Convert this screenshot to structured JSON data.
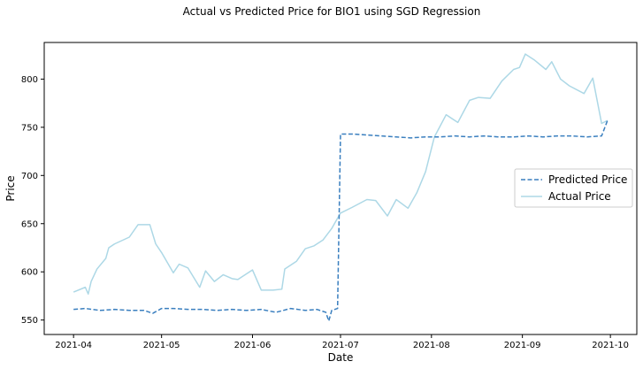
{
  "chart_data": {
    "type": "line",
    "title": "Actual vs Predicted Price for BIO1 using SGD Regression",
    "xlabel": "Date",
    "ylabel": "Price",
    "xlim": [
      "2021-03-22",
      "2021-10-10"
    ],
    "ylim": [
      535,
      838
    ],
    "x_ticks": [
      "2021-04",
      "2021-05",
      "2021-06",
      "2021-07",
      "2021-08",
      "2021-09",
      "2021-10"
    ],
    "y_ticks": [
      550,
      600,
      650,
      700,
      750,
      800
    ],
    "grid": false,
    "legend_position": "right",
    "series": [
      {
        "name": "Predicted Price",
        "color": "#3a7fbf",
        "style": "dashed",
        "x": [
          "2021-04-01",
          "2021-04-05",
          "2021-04-10",
          "2021-04-15",
          "2021-04-20",
          "2021-04-25",
          "2021-04-28",
          "2021-05-01",
          "2021-05-05",
          "2021-05-10",
          "2021-05-15",
          "2021-05-20",
          "2021-05-25",
          "2021-05-30",
          "2021-06-04",
          "2021-06-09",
          "2021-06-14",
          "2021-06-19",
          "2021-06-23",
          "2021-06-26",
          "2021-06-27",
          "2021-06-28",
          "2021-06-30",
          "2021-07-01",
          "2021-07-05",
          "2021-07-10",
          "2021-07-15",
          "2021-07-20",
          "2021-07-25",
          "2021-07-30",
          "2021-08-04",
          "2021-08-09",
          "2021-08-14",
          "2021-08-19",
          "2021-08-24",
          "2021-08-29",
          "2021-09-03",
          "2021-09-08",
          "2021-09-13",
          "2021-09-18",
          "2021-09-23",
          "2021-09-28",
          "2021-09-30"
        ],
        "values": [
          561,
          562,
          560,
          561,
          560,
          560,
          557,
          562,
          562,
          561,
          561,
          560,
          561,
          560,
          561,
          558,
          562,
          560,
          561,
          558,
          549,
          560,
          562,
          743,
          743,
          742,
          741,
          740,
          739,
          740,
          740,
          741,
          740,
          741,
          740,
          740,
          741,
          740,
          741,
          741,
          740,
          741,
          757
        ]
      },
      {
        "name": "Actual Price",
        "color": "#add8e6",
        "style": "solid",
        "x": [
          "2021-04-01",
          "2021-04-05",
          "2021-04-06",
          "2021-04-07",
          "2021-04-09",
          "2021-04-12",
          "2021-04-13",
          "2021-04-15",
          "2021-04-20",
          "2021-04-23",
          "2021-04-27",
          "2021-04-29",
          "2021-05-01",
          "2021-05-05",
          "2021-05-07",
          "2021-05-10",
          "2021-05-12",
          "2021-05-14",
          "2021-05-16",
          "2021-05-19",
          "2021-05-22",
          "2021-05-25",
          "2021-05-27",
          "2021-06-01",
          "2021-06-04",
          "2021-06-08",
          "2021-06-11",
          "2021-06-12",
          "2021-06-16",
          "2021-06-19",
          "2021-06-22",
          "2021-06-25",
          "2021-06-28",
          "2021-07-01",
          "2021-07-05",
          "2021-07-10",
          "2021-07-13",
          "2021-07-17",
          "2021-07-20",
          "2021-07-24",
          "2021-07-27",
          "2021-07-30",
          "2021-08-02",
          "2021-08-06",
          "2021-08-10",
          "2021-08-14",
          "2021-08-17",
          "2021-08-21",
          "2021-08-25",
          "2021-08-29",
          "2021-08-31",
          "2021-09-02",
          "2021-09-05",
          "2021-09-09",
          "2021-09-11",
          "2021-09-14",
          "2021-09-17",
          "2021-09-22",
          "2021-09-25",
          "2021-09-28",
          "2021-09-30"
        ],
        "values": [
          579,
          584,
          577,
          590,
          603,
          614,
          625,
          629,
          636,
          649,
          649,
          629,
          620,
          599,
          608,
          604,
          594,
          584,
          601,
          590,
          597,
          593,
          592,
          602,
          581,
          581,
          582,
          603,
          611,
          624,
          627,
          633,
          645,
          661,
          667,
          675,
          674,
          658,
          675,
          666,
          682,
          704,
          740,
          763,
          755,
          778,
          781,
          780,
          798,
          810,
          812,
          826,
          820,
          810,
          818,
          800,
          793,
          785,
          801,
          754,
          757
        ]
      }
    ]
  }
}
